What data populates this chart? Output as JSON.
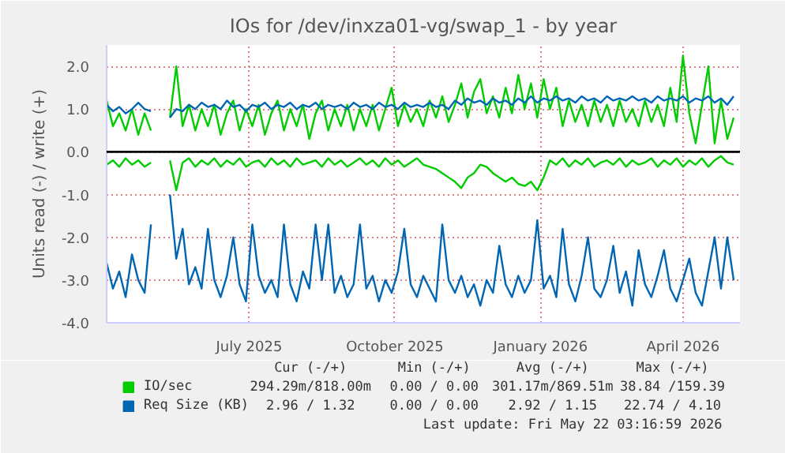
{
  "chart_data": {
    "type": "line",
    "title": "IOs for /dev/inxza01-vg/swap_1 - by year",
    "ylabel": "Units read (-) / write (+)",
    "x": [
      "2025-04-17",
      "2025-04-21",
      "2025-04-25",
      "2025-04-29",
      "2025-05-03",
      "2025-05-07",
      "2025-05-11",
      "2025-05-15",
      "2025-05-19",
      "2025-05-23",
      "2025-05-27",
      "2025-05-31",
      "2025-06-04",
      "2025-06-08",
      "2025-06-12",
      "2025-06-16",
      "2025-06-20",
      "2025-06-24",
      "2025-06-28",
      "2025-07-02",
      "2025-07-06",
      "2025-07-10",
      "2025-07-14",
      "2025-07-18",
      "2025-07-22",
      "2025-07-26",
      "2025-07-30",
      "2025-08-03",
      "2025-08-07",
      "2025-08-11",
      "2025-08-15",
      "2025-08-19",
      "2025-08-23",
      "2025-08-27",
      "2025-08-31",
      "2025-09-04",
      "2025-09-08",
      "2025-09-12",
      "2025-09-16",
      "2025-09-20",
      "2025-09-24",
      "2025-09-28",
      "2025-10-02",
      "2025-10-06",
      "2025-10-10",
      "2025-10-14",
      "2025-10-18",
      "2025-10-22",
      "2025-10-26",
      "2025-10-30",
      "2025-11-03",
      "2025-11-07",
      "2025-11-11",
      "2025-11-15",
      "2025-11-19",
      "2025-11-23",
      "2025-11-27",
      "2025-12-01",
      "2025-12-05",
      "2025-12-09",
      "2025-12-13",
      "2025-12-17",
      "2025-12-21",
      "2025-12-25",
      "2025-12-29",
      "2026-01-02",
      "2026-01-06",
      "2026-01-10",
      "2026-01-14",
      "2026-01-18",
      "2026-01-22",
      "2026-01-26",
      "2026-01-30",
      "2026-02-03",
      "2026-02-07",
      "2026-02-11",
      "2026-02-15",
      "2026-02-19",
      "2026-02-23",
      "2026-02-27",
      "2026-03-03",
      "2026-03-07",
      "2026-03-11",
      "2026-03-15",
      "2026-03-19",
      "2026-03-23",
      "2026-03-27",
      "2026-03-31",
      "2026-04-04",
      "2026-04-08",
      "2026-04-12",
      "2026-04-16",
      "2026-04-20",
      "2026-04-24",
      "2026-04-28",
      "2026-05-02",
      "2026-05-06",
      "2026-05-10",
      "2026-05-14",
      "2026-05-18"
    ],
    "series": [
      {
        "name": "IO/sec",
        "color": "#00cc00",
        "values": [
          1.2,
          0.6,
          0.9,
          0.5,
          1.0,
          0.4,
          0.9,
          0.5,
          null,
          null,
          0.8,
          2.0,
          0.6,
          1.1,
          0.5,
          1.0,
          0.6,
          1.1,
          0.4,
          0.9,
          1.2,
          0.5,
          1.0,
          0.6,
          1.1,
          0.4,
          0.9,
          1.2,
          0.5,
          1.0,
          0.6,
          1.1,
          0.3,
          0.9,
          1.2,
          0.5,
          1.0,
          0.6,
          1.1,
          0.5,
          1.0,
          0.6,
          1.1,
          0.5,
          1.0,
          1.5,
          0.6,
          1.1,
          0.7,
          1.0,
          0.6,
          1.2,
          0.8,
          1.3,
          0.7,
          1.1,
          1.6,
          0.8,
          1.4,
          1.7,
          0.9,
          1.3,
          0.8,
          1.5,
          0.9,
          1.8,
          1.0,
          1.6,
          0.8,
          1.7,
          1.0,
          1.5,
          0.6,
          1.2,
          0.7,
          1.1,
          0.6,
          1.2,
          0.7,
          1.1,
          0.6,
          1.2,
          0.7,
          1.0,
          0.6,
          1.2,
          0.7,
          1.1,
          0.6,
          1.5,
          0.7,
          2.25,
          0.9,
          0.2,
          1.1,
          2.0,
          0.2,
          1.2,
          0.3,
          0.8
        ]
      },
      {
        "color": "#00cc00",
        "values": [
          -0.3,
          -0.2,
          -0.35,
          -0.15,
          -0.3,
          -0.2,
          -0.35,
          -0.25,
          null,
          null,
          -0.2,
          -0.9,
          -0.25,
          -0.15,
          -0.35,
          -0.2,
          -0.3,
          -0.15,
          -0.35,
          -0.2,
          -0.3,
          -0.15,
          -0.35,
          -0.25,
          -0.2,
          -0.35,
          -0.15,
          -0.3,
          -0.2,
          -0.35,
          -0.15,
          -0.3,
          -0.25,
          -0.2,
          -0.35,
          -0.15,
          -0.3,
          -0.2,
          -0.35,
          -0.25,
          -0.15,
          -0.3,
          -0.2,
          -0.35,
          -0.15,
          -0.3,
          -0.2,
          -0.35,
          -0.25,
          -0.15,
          -0.3,
          -0.35,
          -0.4,
          -0.5,
          -0.6,
          -0.7,
          -0.85,
          -0.6,
          -0.5,
          -0.3,
          -0.35,
          -0.5,
          -0.6,
          -0.7,
          -0.6,
          -0.75,
          -0.8,
          -0.7,
          -0.9,
          -0.6,
          -0.2,
          -0.3,
          -0.15,
          -0.35,
          -0.2,
          -0.3,
          -0.15,
          -0.35,
          -0.25,
          -0.2,
          -0.3,
          -0.15,
          -0.35,
          -0.2,
          -0.3,
          -0.25,
          -0.15,
          -0.35,
          -0.2,
          -0.3,
          -0.15,
          -0.35,
          -0.2,
          -0.3,
          -0.15,
          -0.35,
          -0.2,
          -0.1,
          -0.25,
          -0.3
        ]
      },
      {
        "name": "Req Size (KB)",
        "color": "#0066b3",
        "values": [
          1.1,
          0.95,
          1.05,
          0.9,
          1.0,
          1.15,
          1.0,
          0.95,
          null,
          null,
          0.8,
          1.0,
          0.95,
          1.1,
          1.0,
          1.15,
          1.05,
          1.1,
          1.0,
          1.2,
          1.05,
          1.1,
          0.95,
          1.1,
          1.05,
          1.15,
          1.0,
          1.1,
          1.05,
          1.15,
          1.0,
          1.1,
          1.05,
          1.15,
          1.0,
          1.1,
          1.05,
          1.1,
          1.0,
          1.15,
          1.05,
          1.1,
          1.0,
          1.15,
          1.05,
          1.1,
          1.0,
          1.15,
          1.05,
          1.1,
          1.05,
          1.15,
          1.05,
          1.1,
          1.0,
          1.2,
          1.1,
          1.25,
          1.15,
          1.2,
          1.1,
          1.25,
          1.15,
          1.2,
          1.1,
          1.25,
          1.15,
          1.3,
          1.15,
          1.25,
          1.2,
          1.3,
          1.2,
          1.25,
          1.15,
          1.3,
          1.2,
          1.25,
          1.15,
          1.3,
          1.2,
          1.25,
          1.2,
          1.3,
          1.2,
          1.25,
          1.15,
          1.3,
          1.2,
          1.25,
          1.2,
          1.3,
          1.15,
          1.25,
          1.2,
          1.3,
          1.15,
          1.25,
          1.1,
          1.3
        ]
      },
      {
        "color": "#0066b3",
        "values": [
          -2.6,
          -3.2,
          -2.8,
          -3.4,
          -2.4,
          -3.0,
          -3.3,
          -1.7,
          null,
          null,
          -1.0,
          -2.5,
          -1.8,
          -3.1,
          -2.7,
          -3.2,
          -1.8,
          -3.0,
          -3.4,
          -2.9,
          -2.0,
          -3.1,
          -3.5,
          -1.7,
          -2.9,
          -3.3,
          -3.0,
          -3.4,
          -1.7,
          -3.1,
          -3.5,
          -2.8,
          -3.2,
          -1.7,
          -3.0,
          -1.7,
          -3.3,
          -2.9,
          -3.4,
          -3.1,
          -1.7,
          -3.2,
          -2.9,
          -3.5,
          -3.0,
          -3.3,
          -2.8,
          -1.8,
          -3.1,
          -3.4,
          -2.9,
          -3.2,
          -3.5,
          -1.7,
          -3.0,
          -3.3,
          -2.9,
          -3.4,
          -3.1,
          -3.6,
          -3.0,
          -3.3,
          -2.2,
          -3.1,
          -3.4,
          -2.9,
          -3.3,
          -3.0,
          -1.6,
          -3.2,
          -2.9,
          -3.4,
          -1.8,
          -3.1,
          -3.5,
          -2.9,
          -2.0,
          -3.2,
          -3.4,
          -3.0,
          -2.2,
          -3.3,
          -2.8,
          -3.6,
          -2.3,
          -3.1,
          -3.4,
          -2.9,
          -2.3,
          -3.2,
          -3.5,
          -3.0,
          -2.5,
          -3.3,
          -3.6,
          -2.8,
          -2.0,
          -3.2,
          -2.0,
          -3.0
        ]
      }
    ],
    "xlim": [
      "2025-04-17",
      "2026-05-22"
    ],
    "xticks": [
      {
        "value": "2025-07-16",
        "label": "July 2025"
      },
      {
        "value": "2025-10-16",
        "label": "October 2025"
      },
      {
        "value": "2026-01-16",
        "label": "January 2026"
      },
      {
        "value": "2026-04-16",
        "label": "April 2026"
      }
    ],
    "ylim": [
      -4.0,
      2.5
    ],
    "yticks": [
      {
        "value": -4,
        "label": "-4.0"
      },
      {
        "value": -3,
        "label": "-3.0"
      },
      {
        "value": -2,
        "label": "-2.0"
      },
      {
        "value": -1,
        "label": "-1.0"
      },
      {
        "value": 0,
        "label": "0.0"
      },
      {
        "value": 1,
        "label": "1.0"
      },
      {
        "value": 2,
        "label": "2.0"
      }
    ],
    "ref_lines": [
      {
        "axis": "y",
        "value": 0,
        "color": "#000000"
      }
    ],
    "grid": true,
    "legend": "bottom",
    "annotations": [
      "Cur (-/+)",
      "Min (-/+)",
      "Avg (-/+)",
      "Max (-/+)",
      "294.29m/818.00m",
      "0.00 / 0.00",
      "301.17m/869.51m",
      "38.84 /159.39",
      "2.96 / 1.32",
      "0.00 / 0.00",
      "2.92 / 1.15",
      "22.74 / 4.10",
      "Last update: Fri May 22 03:16:59 2026"
    ]
  }
}
